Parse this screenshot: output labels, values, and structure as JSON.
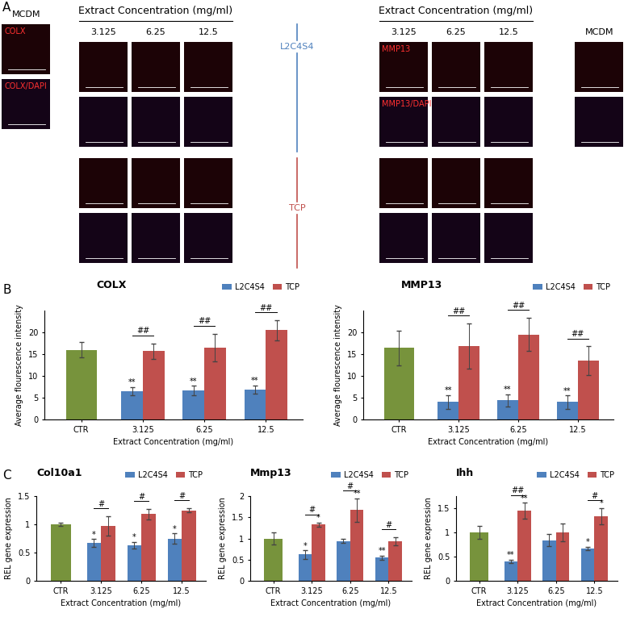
{
  "panel_labels": [
    "A",
    "B",
    "C"
  ],
  "panel_a": {
    "header": "Extract Concentration (mg/ml)",
    "concentrations": [
      "3.125",
      "6.25",
      "12.5"
    ],
    "control": "MCDM",
    "groups": [
      "L2C4S4",
      "TCP"
    ],
    "stains_left": [
      "COLX",
      "COLX/DAPI"
    ],
    "stains_right": [
      "MMP13",
      "MMP13/DAPI"
    ]
  },
  "chart_data": [
    {
      "type": "bar",
      "title": "COLX",
      "x_label": "Extract Concentration (mg/ml)",
      "y_label": "Average flourescence intensity",
      "categories": [
        "CTR",
        "3.125",
        "6.25",
        "12.5"
      ],
      "control": {
        "value": 16.0,
        "error": 1.8,
        "color": "#77933c"
      },
      "series": [
        {
          "name": "L2C4S4",
          "color": "#4f81bd",
          "values": [
            null,
            6.5,
            6.6,
            6.9
          ],
          "errors": [
            null,
            1.0,
            1.1,
            0.9
          ],
          "marks": [
            null,
            "**",
            "**",
            "**"
          ]
        },
        {
          "name": "TCP",
          "color": "#c0504d",
          "values": [
            null,
            15.7,
            16.5,
            20.5
          ],
          "errors": [
            null,
            1.8,
            3.2,
            2.3
          ],
          "marks": [
            null,
            null,
            null,
            null
          ]
        }
      ],
      "pair_marks": [
        null,
        "##",
        "##",
        "##"
      ],
      "ylim": [
        0,
        25
      ],
      "yticks": [
        0,
        5,
        10,
        15,
        20
      ],
      "legend": "upper right"
    },
    {
      "type": "bar",
      "title": "MMP13",
      "x_label": "Extract Concentration (mg/ml)",
      "y_label": "Average flourescence intensity",
      "categories": [
        "CTR",
        "3.125",
        "6.25",
        "12.5"
      ],
      "control": {
        "value": 16.4,
        "error": 3.9,
        "color": "#77933c"
      },
      "series": [
        {
          "name": "L2C4S4",
          "color": "#4f81bd",
          "values": [
            null,
            4.0,
            4.4,
            4.0
          ],
          "errors": [
            null,
            1.6,
            1.4,
            1.5
          ],
          "marks": [
            null,
            "**",
            "**",
            "**"
          ]
        },
        {
          "name": "TCP",
          "color": "#c0504d",
          "values": [
            null,
            16.8,
            19.5,
            13.5
          ],
          "errors": [
            null,
            5.2,
            3.8,
            3.3
          ],
          "marks": [
            null,
            null,
            null,
            null
          ]
        }
      ],
      "pair_marks": [
        null,
        "##",
        "##",
        "##"
      ],
      "ylim": [
        0,
        25
      ],
      "yticks": [
        0,
        5,
        10,
        15,
        20
      ],
      "legend": "upper right"
    },
    {
      "type": "bar",
      "title": "Col10a1",
      "x_label": "Extract Concentration (mg/ml)",
      "y_label": "REL gene expression",
      "categories": [
        "CTR",
        "3.125",
        "6.25",
        "12.5"
      ],
      "control": {
        "value": 1.0,
        "error": 0.03,
        "color": "#77933c"
      },
      "series": [
        {
          "name": "L2C4S4",
          "color": "#4f81bd",
          "values": [
            null,
            0.67,
            0.63,
            0.75
          ],
          "errors": [
            null,
            0.07,
            0.06,
            0.09
          ],
          "marks": [
            null,
            "*",
            "*",
            "*"
          ]
        },
        {
          "name": "TCP",
          "color": "#c0504d",
          "values": [
            null,
            0.97,
            1.18,
            1.25
          ],
          "errors": [
            null,
            0.17,
            0.09,
            0.04
          ],
          "marks": [
            null,
            null,
            null,
            null
          ]
        }
      ],
      "pair_marks": [
        null,
        "#",
        "#",
        "#"
      ],
      "ylim": [
        0,
        1.5
      ],
      "yticks": [
        0,
        0.5,
        1,
        1.5
      ],
      "legend": "upper right"
    },
    {
      "type": "bar",
      "title": "Mmp13",
      "x_label": "Extract Concentration (mg/ml)",
      "y_label": "REL gene expression",
      "categories": [
        "CTR",
        "3.125",
        "6.25",
        "12.5"
      ],
      "control": {
        "value": 1.0,
        "error": 0.15,
        "color": "#77933c"
      },
      "series": [
        {
          "name": "L2C4S4",
          "color": "#4f81bd",
          "values": [
            null,
            0.62,
            0.94,
            0.55
          ],
          "errors": [
            null,
            0.1,
            0.05,
            0.05
          ],
          "marks": [
            null,
            "*",
            null,
            "**"
          ]
        },
        {
          "name": "TCP",
          "color": "#c0504d",
          "values": [
            null,
            1.33,
            1.67,
            0.93
          ],
          "errors": [
            null,
            0.05,
            0.27,
            0.1
          ],
          "marks": [
            null,
            "*",
            "**",
            null
          ]
        }
      ],
      "pair_marks": [
        null,
        "#",
        "#",
        "#"
      ],
      "ylim": [
        0,
        2
      ],
      "yticks": [
        0,
        0.5,
        1,
        1.5,
        2
      ],
      "legend": "upper right"
    },
    {
      "type": "bar",
      "title": "Ihh",
      "x_label": "Extract Concentration (mg/ml)",
      "y_label": "REL gene expression",
      "categories": [
        "CTR",
        "3.125",
        "6.25",
        "12.5"
      ],
      "control": {
        "value": 1.0,
        "error": 0.14,
        "color": "#77933c"
      },
      "series": [
        {
          "name": "L2C4S4",
          "color": "#4f81bd",
          "values": [
            null,
            0.4,
            0.84,
            0.67
          ],
          "errors": [
            null,
            0.04,
            0.13,
            0.03
          ],
          "marks": [
            null,
            "**",
            null,
            "*"
          ]
        },
        {
          "name": "TCP",
          "color": "#c0504d",
          "values": [
            null,
            1.45,
            1.0,
            1.33
          ],
          "errors": [
            null,
            0.16,
            0.18,
            0.17
          ],
          "marks": [
            null,
            "**",
            null,
            "*"
          ]
        }
      ],
      "pair_marks": [
        null,
        "##",
        null,
        "#"
      ],
      "ylim": [
        0,
        1.75
      ],
      "yticks": [
        0,
        0.5,
        1,
        1.5
      ],
      "legend": "upper right"
    }
  ]
}
